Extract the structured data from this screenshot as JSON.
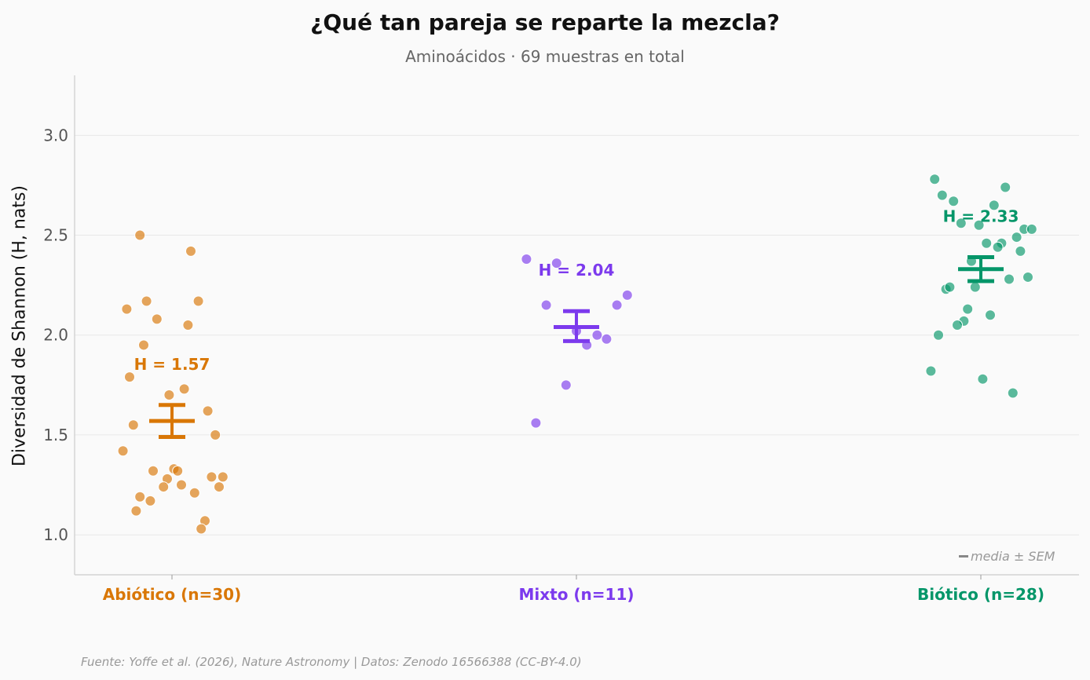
{
  "chart_data": {
    "type": "scatter",
    "title": "¿Qué tan pareja se reparte la mezcla?",
    "subtitle": "Aminoácidos · 69 muestras en total",
    "ylabel": "Diversidad de Shannon (H, nats)",
    "ylim": [
      0.8,
      3.3
    ],
    "yticks": [
      "1.0",
      "1.5",
      "2.0",
      "2.5",
      "3.0"
    ],
    "grid": true,
    "legend": {
      "label": "media ± SEM",
      "position": "bottom-right"
    },
    "source": "Fuente: Yoffe et al. (2026), Nature Astronomy | Datos: Zenodo 16566388 (CC-BY-4.0)",
    "groups": [
      {
        "label": "Abiótico (n=30)",
        "color": "#d97706",
        "mean": 1.57,
        "mean_label": "H = 1.57",
        "sem_low": 1.49,
        "sem_high": 1.65,
        "points": [
          {
            "jitter": -0.34,
            "y": 2.5
          },
          {
            "jitter": 0.2,
            "y": 2.42
          },
          {
            "jitter": -0.48,
            "y": 2.13
          },
          {
            "jitter": -0.27,
            "y": 2.17
          },
          {
            "jitter": 0.28,
            "y": 2.17
          },
          {
            "jitter": -0.16,
            "y": 2.08
          },
          {
            "jitter": 0.17,
            "y": 2.05
          },
          {
            "jitter": -0.3,
            "y": 1.95
          },
          {
            "jitter": -0.45,
            "y": 1.79
          },
          {
            "jitter": -0.03,
            "y": 1.7
          },
          {
            "jitter": 0.13,
            "y": 1.73
          },
          {
            "jitter": 0.38,
            "y": 1.62
          },
          {
            "jitter": -0.41,
            "y": 1.55
          },
          {
            "jitter": 0.46,
            "y": 1.5
          },
          {
            "jitter": -0.52,
            "y": 1.42
          },
          {
            "jitter": -0.2,
            "y": 1.32
          },
          {
            "jitter": 0.02,
            "y": 1.33
          },
          {
            "jitter": 0.06,
            "y": 1.32
          },
          {
            "jitter": -0.05,
            "y": 1.28
          },
          {
            "jitter": 0.42,
            "y": 1.29
          },
          {
            "jitter": 0.54,
            "y": 1.29
          },
          {
            "jitter": -0.09,
            "y": 1.24
          },
          {
            "jitter": 0.1,
            "y": 1.25
          },
          {
            "jitter": 0.5,
            "y": 1.24
          },
          {
            "jitter": 0.24,
            "y": 1.21
          },
          {
            "jitter": -0.34,
            "y": 1.19
          },
          {
            "jitter": -0.23,
            "y": 1.17
          },
          {
            "jitter": -0.38,
            "y": 1.12
          },
          {
            "jitter": 0.35,
            "y": 1.07
          },
          {
            "jitter": 0.31,
            "y": 1.03
          }
        ]
      },
      {
        "label": "Mixto (n=11)",
        "color": "#7c3aed",
        "mean": 2.04,
        "mean_label": "H = 2.04",
        "sem_low": 1.97,
        "sem_high": 2.12,
        "points": [
          {
            "jitter": -0.53,
            "y": 2.38
          },
          {
            "jitter": -0.21,
            "y": 2.36
          },
          {
            "jitter": -0.32,
            "y": 2.15
          },
          {
            "jitter": 0.43,
            "y": 2.15
          },
          {
            "jitter": 0.54,
            "y": 2.2
          },
          {
            "jitter": 0.0,
            "y": 2.02
          },
          {
            "jitter": 0.22,
            "y": 2.0
          },
          {
            "jitter": 0.32,
            "y": 1.98
          },
          {
            "jitter": 0.11,
            "y": 1.95
          },
          {
            "jitter": -0.11,
            "y": 1.75
          },
          {
            "jitter": -0.43,
            "y": 1.56
          }
        ]
      },
      {
        "label": "Biótico (n=28)",
        "color": "#059669",
        "mean": 2.33,
        "mean_label": "H = 2.33",
        "sem_low": 2.27,
        "sem_high": 2.39,
        "points": [
          {
            "jitter": -0.49,
            "y": 2.78
          },
          {
            "jitter": 0.26,
            "y": 2.74
          },
          {
            "jitter": -0.41,
            "y": 2.7
          },
          {
            "jitter": -0.29,
            "y": 2.67
          },
          {
            "jitter": 0.14,
            "y": 2.65
          },
          {
            "jitter": -0.21,
            "y": 2.56
          },
          {
            "jitter": -0.02,
            "y": 2.55
          },
          {
            "jitter": 0.46,
            "y": 2.53
          },
          {
            "jitter": 0.54,
            "y": 2.53
          },
          {
            "jitter": 0.38,
            "y": 2.49
          },
          {
            "jitter": 0.06,
            "y": 2.46
          },
          {
            "jitter": 0.22,
            "y": 2.46
          },
          {
            "jitter": 0.18,
            "y": 2.44
          },
          {
            "jitter": 0.42,
            "y": 2.42
          },
          {
            "jitter": -0.1,
            "y": 2.37
          },
          {
            "jitter": 0.3,
            "y": 2.28
          },
          {
            "jitter": 0.5,
            "y": 2.29
          },
          {
            "jitter": -0.37,
            "y": 2.23
          },
          {
            "jitter": -0.33,
            "y": 2.24
          },
          {
            "jitter": -0.06,
            "y": 2.24
          },
          {
            "jitter": -0.14,
            "y": 2.13
          },
          {
            "jitter": 0.1,
            "y": 2.1
          },
          {
            "jitter": -0.18,
            "y": 2.07
          },
          {
            "jitter": -0.25,
            "y": 2.05
          },
          {
            "jitter": -0.45,
            "y": 2.0
          },
          {
            "jitter": -0.53,
            "y": 1.82
          },
          {
            "jitter": 0.02,
            "y": 1.78
          },
          {
            "jitter": 0.34,
            "y": 1.71
          }
        ]
      }
    ]
  }
}
